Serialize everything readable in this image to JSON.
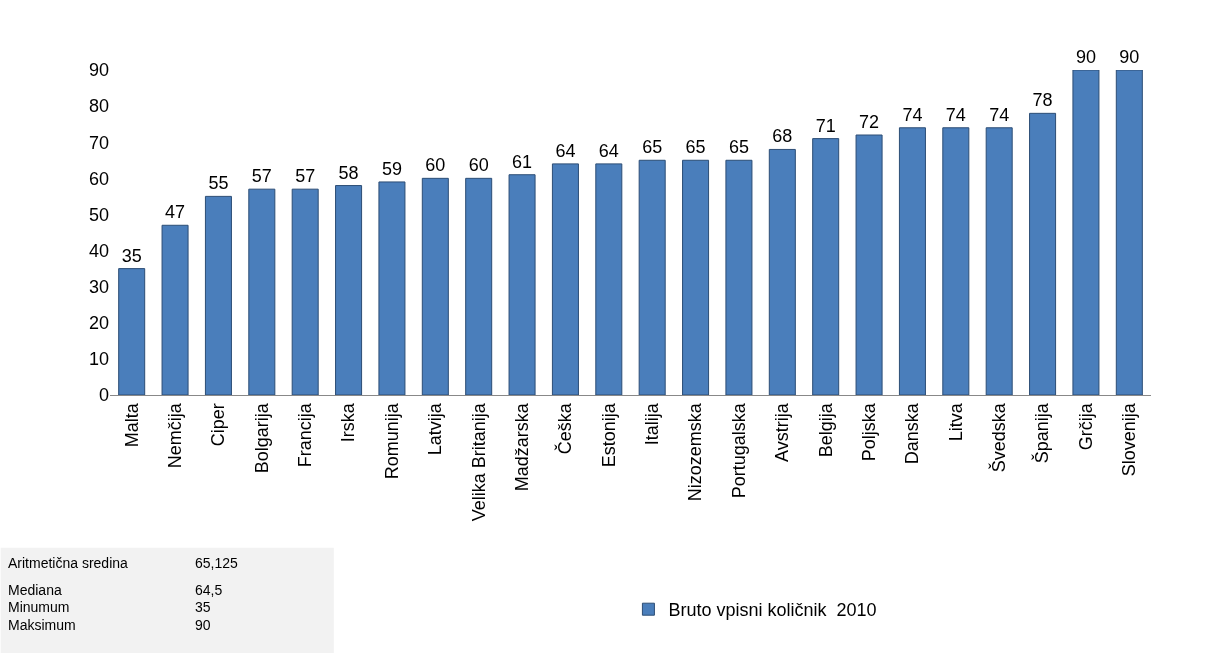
{
  "chart_data": {
    "type": "bar",
    "categories": [
      "Malta",
      "Nemčija",
      "Ciper",
      "Bolgarija",
      "Francija",
      "Irska",
      "Romunija",
      "Latvija",
      "Velika Britanija",
      "Madžarska",
      "Češka",
      "Estonija",
      "Italija",
      "Nizozemska",
      "Portugalska",
      "Avstrija",
      "Belgija",
      "Poljska",
      "Danska",
      "Litva",
      "Švedska",
      "Španija",
      "Grčija",
      "Slovenija"
    ],
    "series": [
      {
        "name": "Bruto vpisni količnik  2010",
        "color": "#4a7ebb",
        "values": [
          35,
          47,
          55,
          57,
          57,
          58,
          59,
          60,
          60,
          61,
          64,
          64,
          65,
          65,
          65,
          68,
          71,
          72,
          74,
          74,
          74,
          78,
          90,
          90
        ]
      }
    ],
    "ylim": [
      0,
      90
    ],
    "yticks": [
      0,
      10,
      20,
      30,
      40,
      50,
      60,
      70,
      80,
      90
    ],
    "grid": false,
    "legend": "bottom",
    "data_labels": true,
    "annotations": [
      "Aritmetična sredina",
      "65,125",
      "Mediana",
      "64,5",
      "Minumum",
      "35",
      "Maksimum",
      "90"
    ]
  }
}
